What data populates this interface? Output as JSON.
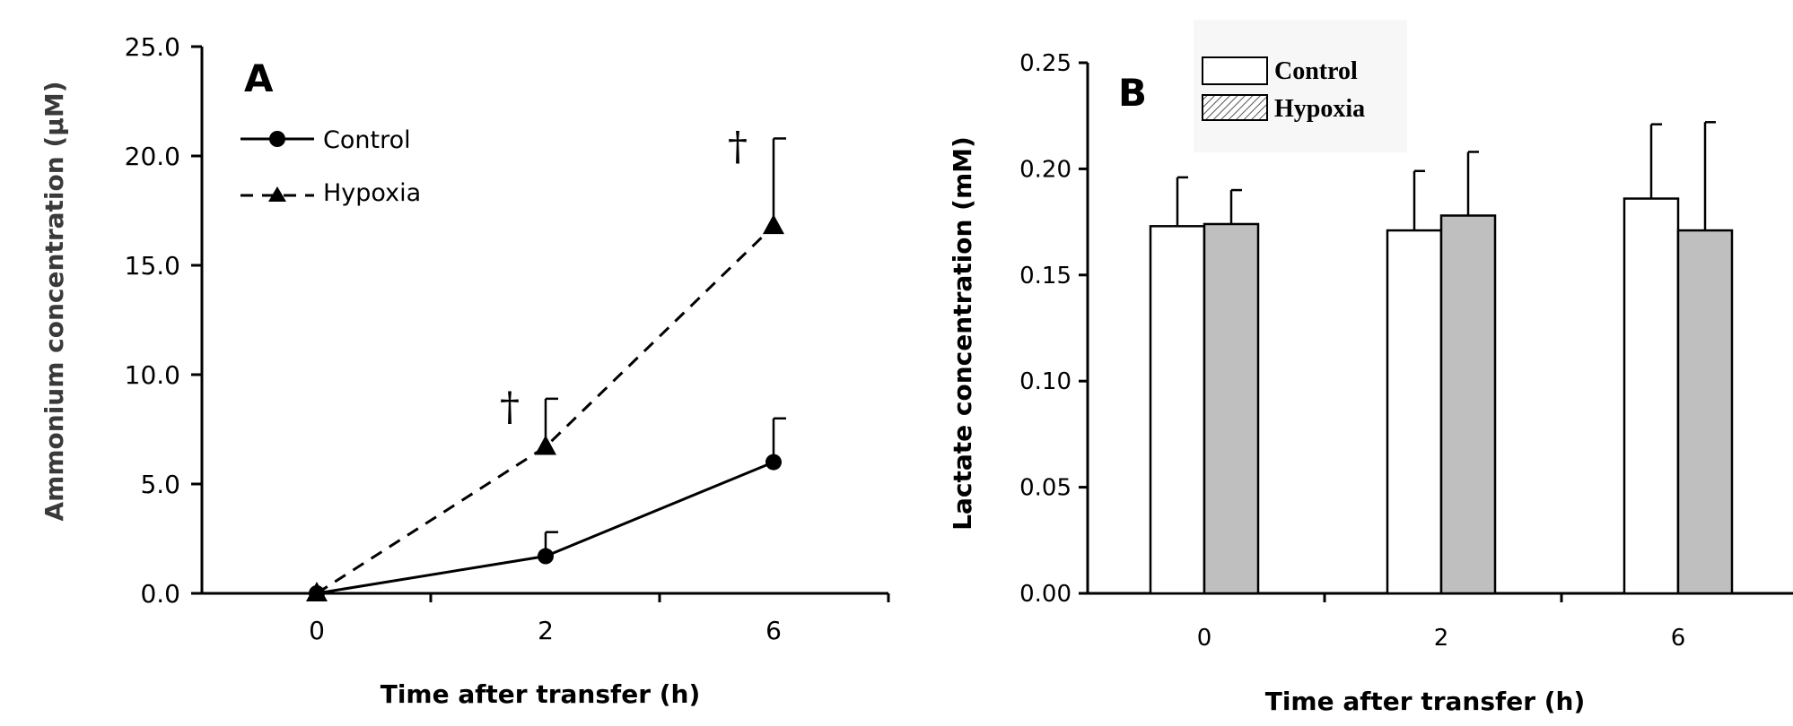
{
  "chart_data": [
    {
      "panel": "A",
      "type": "line",
      "xlabel": "Time after transfer (h)",
      "ylabel": "Ammonium concentration (µM)",
      "categories": [
        "0",
        "2",
        "6"
      ],
      "ylim": [
        0,
        25
      ],
      "yticks": [
        "0.0",
        "5.0",
        "10.0",
        "15.0",
        "20.0",
        "25.0"
      ],
      "series": [
        {
          "name": "Control",
          "values": [
            0.0,
            1.7,
            6.0
          ],
          "errors": [
            0.0,
            1.1,
            2.0
          ],
          "marker": "circle",
          "line": "solid"
        },
        {
          "name": "Hypoxia",
          "values": [
            0.0,
            6.7,
            16.8
          ],
          "errors": [
            0.0,
            2.2,
            4.0
          ],
          "marker": "triangle",
          "line": "dashed"
        }
      ],
      "annotations": [
        {
          "text": "†",
          "category": "2"
        },
        {
          "text": "†",
          "category": "6"
        }
      ],
      "legend_position": "top-left"
    },
    {
      "panel": "B",
      "type": "bar",
      "xlabel": "Time after transfer (h)",
      "ylabel": "Lactate  concentration (mM)",
      "categories": [
        "0",
        "2",
        "6"
      ],
      "ylim": [
        0,
        0.25
      ],
      "yticks": [
        "0.00",
        "0.05",
        "0.10",
        "0.15",
        "0.20",
        "0.25"
      ],
      "series": [
        {
          "name": "Control",
          "values": [
            0.173,
            0.171,
            0.186
          ],
          "errors": [
            0.023,
            0.028,
            0.035
          ],
          "fill": "#ffffff"
        },
        {
          "name": "Hypoxia",
          "values": [
            0.174,
            0.178,
            0.171
          ],
          "errors": [
            0.016,
            0.03,
            0.051
          ],
          "fill": "#bfbfbf"
        }
      ],
      "legend_position": "top-left"
    }
  ]
}
